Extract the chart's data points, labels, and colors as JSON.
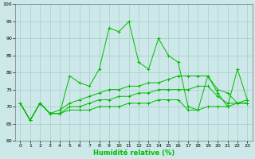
{
  "title": "",
  "xlabel": "Humidité relative (%)",
  "ylabel": "",
  "xlim": [
    -0.5,
    23.5
  ],
  "ylim": [
    60,
    100
  ],
  "yticks": [
    60,
    65,
    70,
    75,
    80,
    85,
    90,
    95,
    100
  ],
  "xticks": [
    0,
    1,
    2,
    3,
    4,
    5,
    6,
    7,
    8,
    9,
    10,
    11,
    12,
    13,
    14,
    15,
    16,
    17,
    18,
    19,
    20,
    21,
    22,
    23
  ],
  "background_color": "#cce8e8",
  "grid_color": "#aacccc",
  "line_color": "#00bb00",
  "lines": [
    [
      71,
      66,
      71,
      68,
      68,
      79,
      77,
      76,
      81,
      93,
      92,
      95,
      83,
      81,
      90,
      85,
      83,
      70,
      69,
      79,
      74,
      70,
      81,
      72
    ],
    [
      71,
      66,
      71,
      68,
      69,
      71,
      72,
      73,
      74,
      75,
      75,
      76,
      76,
      77,
      77,
      78,
      79,
      79,
      79,
      79,
      75,
      74,
      71,
      72
    ],
    [
      71,
      66,
      71,
      68,
      68,
      70,
      70,
      71,
      72,
      72,
      73,
      73,
      74,
      74,
      75,
      75,
      75,
      75,
      76,
      76,
      73,
      71,
      71,
      71
    ],
    [
      71,
      66,
      71,
      68,
      68,
      69,
      69,
      69,
      70,
      70,
      70,
      71,
      71,
      71,
      72,
      72,
      72,
      69,
      69,
      70,
      70,
      70,
      71,
      71
    ]
  ],
  "figsize": [
    3.2,
    2.0
  ],
  "dpi": 100
}
